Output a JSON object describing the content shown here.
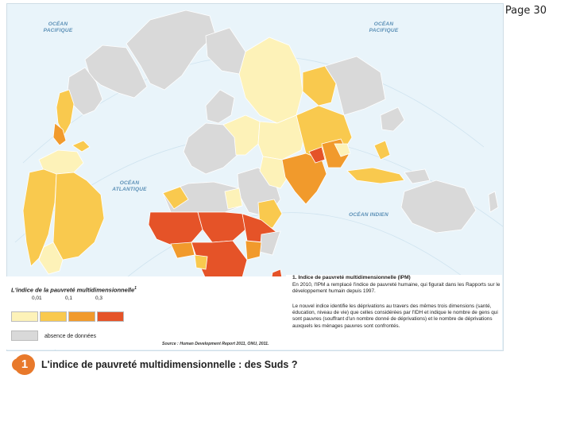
{
  "page_number": "Page 30",
  "oceans": {
    "pacific_nw": "OCÉAN PACIFIQUE",
    "pacific_ne": "OCÉAN PACIFIQUE",
    "atlantic": "OCÉAN ATLANTIQUE",
    "indian": "OCÉAN INDIEN"
  },
  "legend": {
    "title": "L'indice de la pauvreté multidimensionnelle",
    "title_note": "1",
    "thresholds": [
      "0,01",
      "0,1",
      "0,3"
    ],
    "classes": [
      {
        "label": "< 0,01",
        "color": "#fdf2b8"
      },
      {
        "label": "0,01 – 0,1",
        "color": "#f9c94e"
      },
      {
        "label": "0,1 – 0,3",
        "color": "#f19a2c"
      },
      {
        "label": "> 0,3",
        "color": "#e55328"
      }
    ],
    "nodata_color": "#d9d9d9",
    "nodata_label": "absence de données",
    "source": "Source : Human Development Report 2011, ONU, 2011."
  },
  "note": {
    "title": "1. Indice de pauvreté multidimensionnelle (IPM)",
    "paragraph1": "En 2010, l'IPM a remplacé l'indice de pauvreté humaine, qui figurait dans les Rapports sur le développement humain depuis 1997.",
    "paragraph2": "Le nouvel indice identifie les déprivations au travers des mêmes trois dimensions (santé, éducation, niveau de vie) que celles considérées par l'IDH et indique le nombre de gens qui sont pauvres (souffrant d'un nombre donné de déprivations) et le nombre de déprivations auxquels les ménages pauvres sont confrontés."
  },
  "caption": {
    "number": "1",
    "text": "L'indice de pauvreté multidimensionnelle : des Suds ?"
  }
}
